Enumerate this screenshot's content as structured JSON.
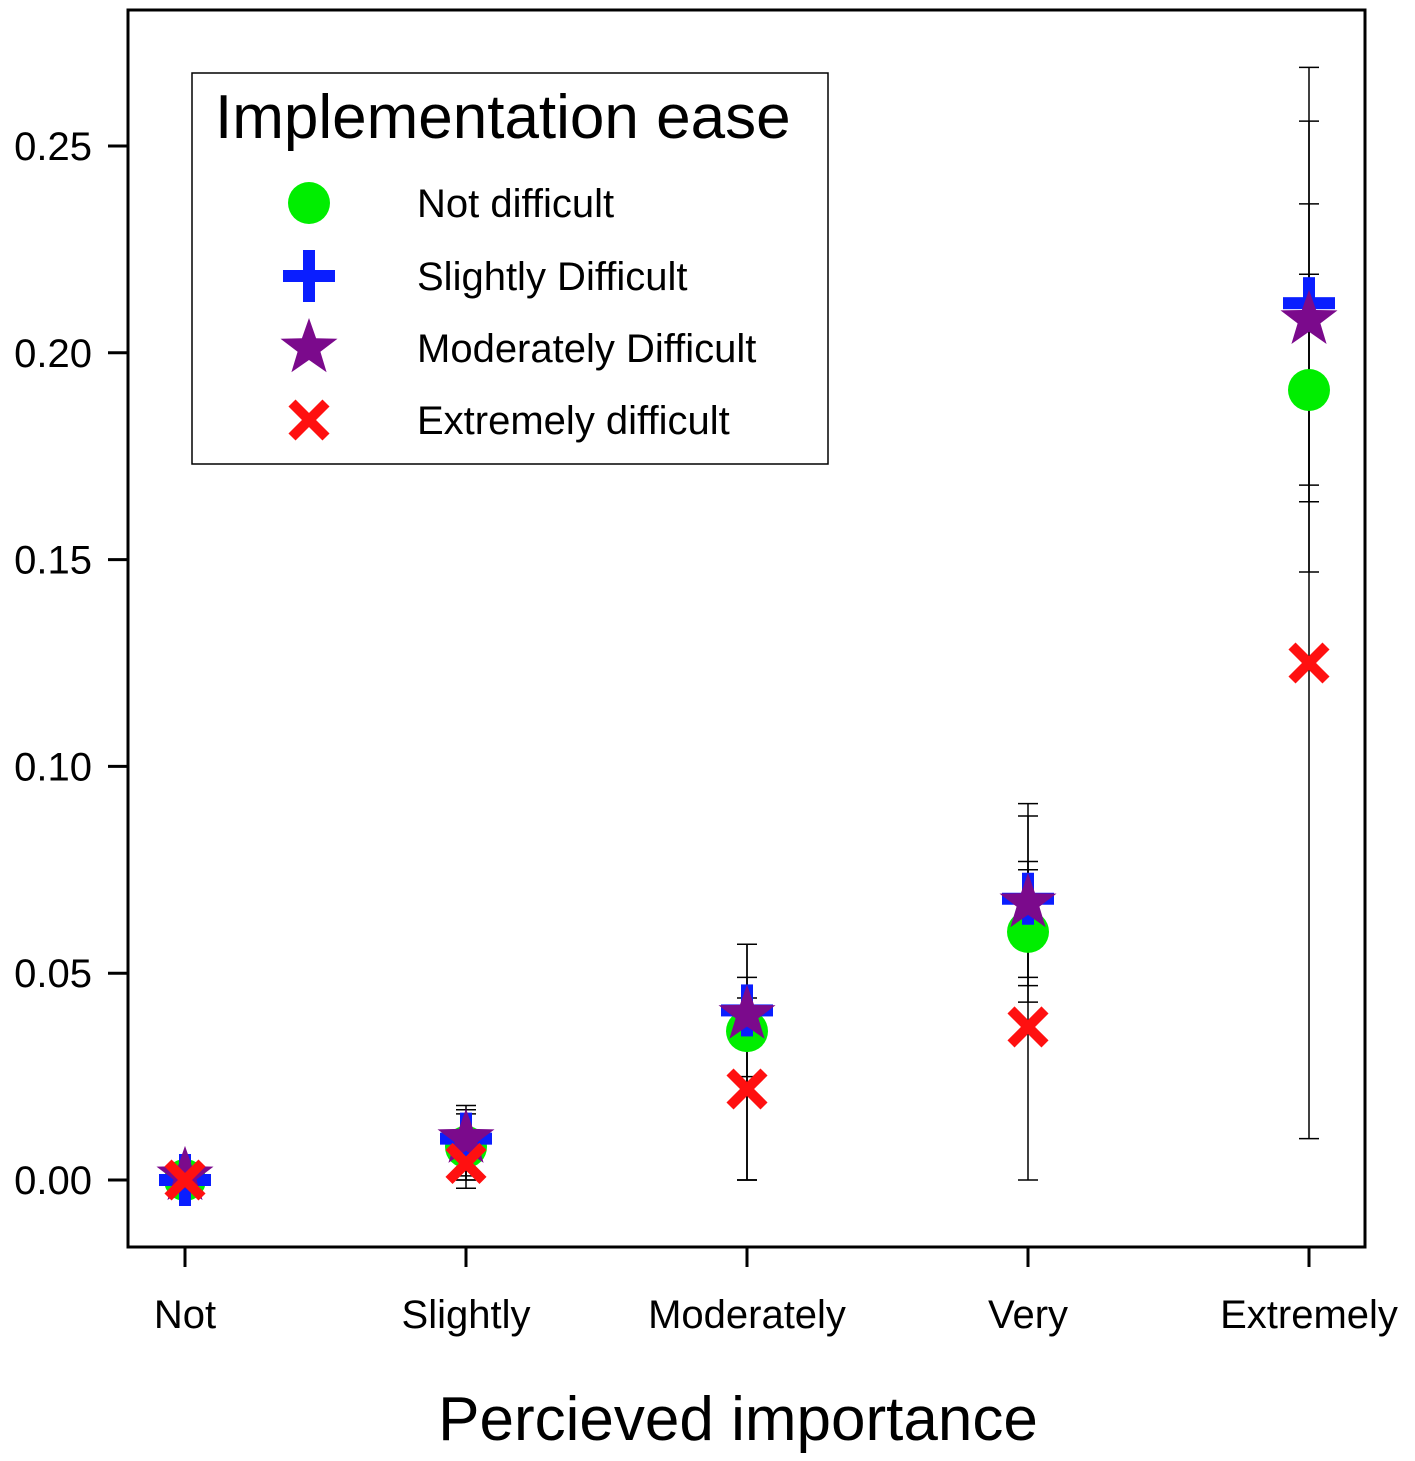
{
  "chart_data": {
    "type": "scatter",
    "title": "",
    "xlabel": "Percieved importance",
    "ylabel": "",
    "categories": [
      "Not",
      "Slightly",
      "Moderately",
      "Very",
      "Extremely"
    ],
    "ylim": [
      -0.016,
      0.283
    ],
    "yticks": [
      "0.00",
      "0.05",
      "0.10",
      "0.15",
      "0.20",
      "0.25"
    ],
    "grid": false,
    "legend": {
      "title": "Implementation ease",
      "placement": "top-left"
    },
    "series": [
      {
        "name": "Not difficult",
        "marker": "circle",
        "color": "#00ee00",
        "values": [
          0.0,
          0.008,
          0.036,
          0.06,
          0.191
        ],
        "error_low": [
          0.0,
          0.0,
          0.0,
          0.043,
          0.147
        ],
        "error_high": [
          0.004,
          0.016,
          0.057,
          0.088,
          0.236
        ]
      },
      {
        "name": "Slightly Difficult",
        "marker": "plus",
        "color": "#0a1eff",
        "values": [
          0.0,
          0.01,
          0.041,
          0.068,
          0.212
        ],
        "error_low": [
          0.0,
          0.001,
          0.0,
          0.047,
          0.168
        ],
        "error_high": [
          0.004,
          0.018,
          0.057,
          0.091,
          0.256
        ]
      },
      {
        "name": "Moderately Difficult",
        "marker": "star",
        "color": "#7b0a8c",
        "values": [
          0.001,
          0.01,
          0.04,
          0.067,
          0.208
        ],
        "error_low": [
          0.0,
          -0.002,
          0.025,
          0.049,
          0.164
        ],
        "error_high": [
          0.003,
          0.017,
          0.049,
          0.075,
          0.269
        ]
      },
      {
        "name": "Extremely difficult",
        "marker": "x",
        "color": "#ff1010",
        "values": [
          0.0,
          0.004,
          0.022,
          0.037,
          0.125
        ],
        "error_low": [
          0.0,
          0.0,
          0.0,
          0.0,
          0.01
        ],
        "error_high": [
          0.002,
          0.008,
          0.044,
          0.077,
          0.219
        ]
      }
    ]
  }
}
